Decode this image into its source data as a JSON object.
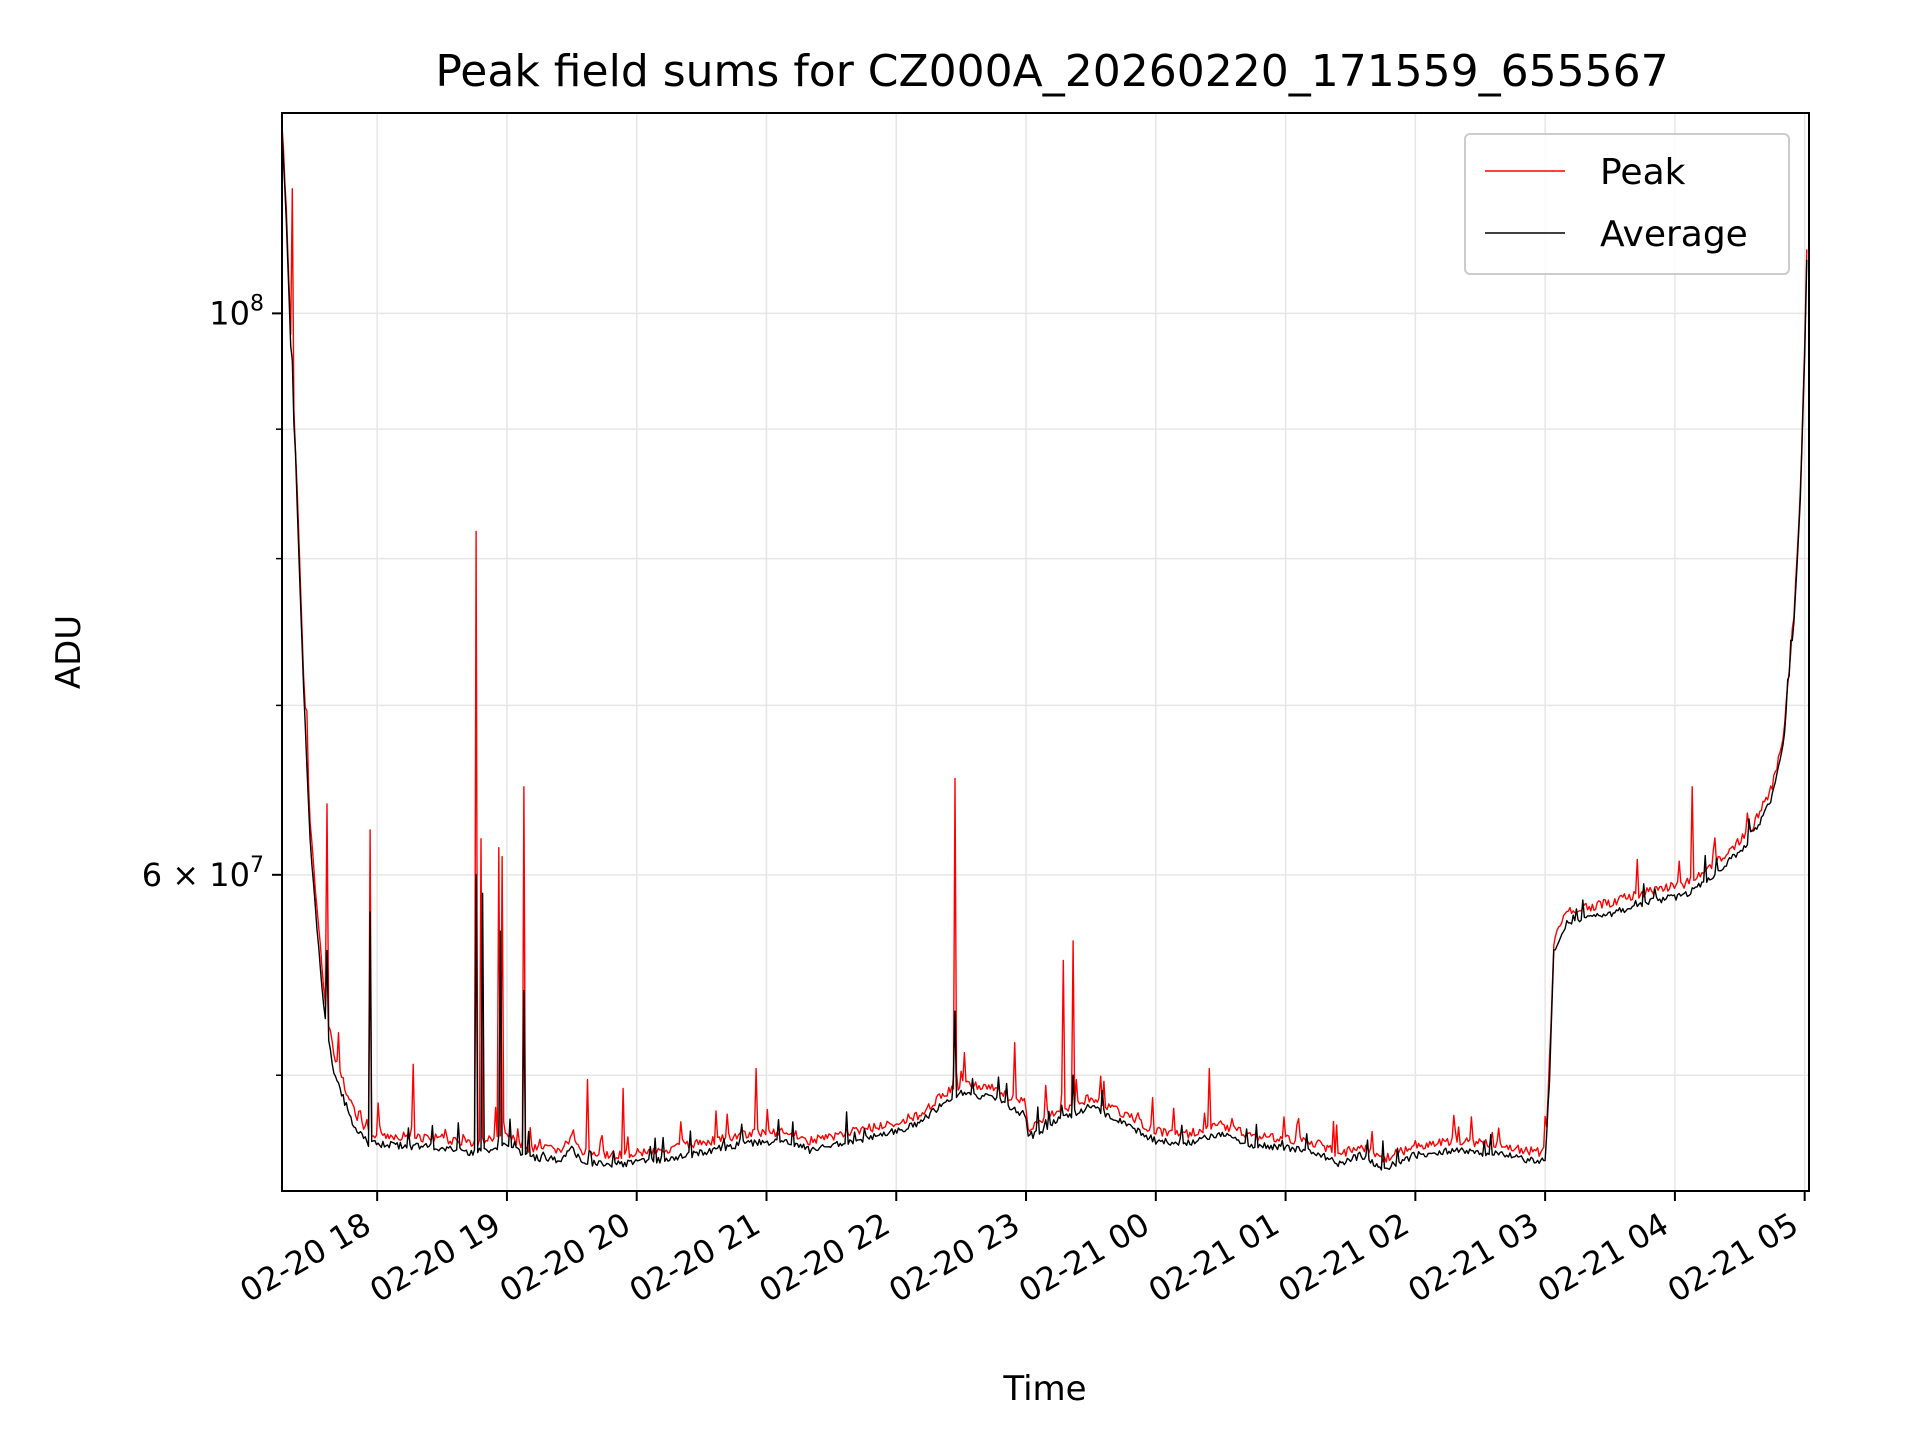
{
  "chart_data": {
    "type": "line",
    "title": "Peak field sums for CZ000A_20260220_171559_655567",
    "xlabel": "Time",
    "ylabel": "ADU",
    "x_scale": "time",
    "y_scale": "log",
    "xlim": [
      "2026-02-20 17:16",
      "2026-02-21 05:02"
    ],
    "ylim": [
      45000000,
      120000000
    ],
    "x_ticks": [
      "02-20 18",
      "02-20 19",
      "02-20 20",
      "02-20 21",
      "02-20 22",
      "02-20 23",
      "02-21 00",
      "02-21 01",
      "02-21 02",
      "02-21 03",
      "02-21 04",
      "02-21 05"
    ],
    "y_ticks": [
      {
        "value": 100000000,
        "label_base": "10",
        "label_exp": "8"
      },
      {
        "value": 60000000,
        "label_base": "6 × 10",
        "label_exp": "7"
      }
    ],
    "y_minor_ticks": [
      50000000,
      70000000,
      80000000,
      90000000
    ],
    "grid": true,
    "legend_position": "top-right",
    "series": [
      {
        "name": "Peak",
        "color": "#ff0000",
        "baseline": [
          [
            "2026-02-20 17:16",
            119000000
          ],
          [
            "2026-02-20 17:18",
            110000000
          ],
          [
            "2026-02-20 17:20",
            98000000
          ],
          [
            "2026-02-20 17:23",
            85000000
          ],
          [
            "2026-02-20 17:26",
            72000000
          ],
          [
            "2026-02-20 17:29",
            63000000
          ],
          [
            "2026-02-20 17:33",
            57000000
          ],
          [
            "2026-02-20 17:36",
            53500000
          ],
          [
            "2026-02-20 17:40",
            51000000
          ],
          [
            "2026-02-20 17:45",
            49500000
          ],
          [
            "2026-02-20 17:50",
            48200000
          ],
          [
            "2026-02-20 17:56",
            47400000
          ],
          [
            "2026-02-20 18:10",
            47300000
          ],
          [
            "2026-02-20 18:30",
            47200000
          ],
          [
            "2026-02-20 18:45",
            47000000
          ],
          [
            "2026-02-20 19:00",
            47300000
          ],
          [
            "2026-02-20 19:10",
            46800000
          ],
          [
            "2026-02-20 19:25",
            46700000
          ],
          [
            "2026-02-20 19:30",
            47200000
          ],
          [
            "2026-02-20 19:35",
            46600000
          ],
          [
            "2026-02-20 19:50",
            46500000
          ],
          [
            "2026-02-20 20:10",
            46700000
          ],
          [
            "2026-02-20 20:30",
            47000000
          ],
          [
            "2026-02-20 20:50",
            47400000
          ],
          [
            "2026-02-20 21:10",
            47500000
          ],
          [
            "2026-02-20 21:20",
            47100000
          ],
          [
            "2026-02-20 21:40",
            47500000
          ],
          [
            "2026-02-20 21:55",
            47800000
          ],
          [
            "2026-02-20 22:10",
            48200000
          ],
          [
            "2026-02-20 22:20",
            49000000
          ],
          [
            "2026-02-20 22:30",
            49600000
          ],
          [
            "2026-02-20 22:45",
            49400000
          ],
          [
            "2026-02-20 23:00",
            48600000
          ],
          [
            "2026-02-20 23:01",
            47600000
          ],
          [
            "2026-02-20 23:15",
            48400000
          ],
          [
            "2026-02-20 23:30",
            49000000
          ],
          [
            "2026-02-20 23:45",
            48300000
          ],
          [
            "2026-02-21 00:00",
            47500000
          ],
          [
            "2026-02-21 00:15",
            47400000
          ],
          [
            "2026-02-21 00:30",
            47800000
          ],
          [
            "2026-02-21 00:45",
            47300000
          ],
          [
            "2026-02-21 01:00",
            47200000
          ],
          [
            "2026-02-21 01:15",
            47000000
          ],
          [
            "2026-02-21 01:25",
            46500000
          ],
          [
            "2026-02-21 01:35",
            46900000
          ],
          [
            "2026-02-21 01:45",
            46300000
          ],
          [
            "2026-02-21 02:00",
            46900000
          ],
          [
            "2026-02-21 02:20",
            47100000
          ],
          [
            "2026-02-21 02:40",
            46900000
          ],
          [
            "2026-02-21 02:58",
            46600000
          ],
          [
            "2026-02-21 03:00",
            46800000
          ],
          [
            "2026-02-21 03:02",
            50000000
          ],
          [
            "2026-02-21 03:04",
            56500000
          ],
          [
            "2026-02-21 03:10",
            58000000
          ],
          [
            "2026-02-21 03:30",
            58500000
          ],
          [
            "2026-02-21 03:50",
            59200000
          ],
          [
            "2026-02-21 04:05",
            59500000
          ],
          [
            "2026-02-21 04:20",
            60800000
          ],
          [
            "2026-02-21 04:35",
            62500000
          ],
          [
            "2026-02-21 04:45",
            65000000
          ],
          [
            "2026-02-21 04:50",
            68000000
          ],
          [
            "2026-02-21 04:55",
            76000000
          ],
          [
            "2026-02-21 04:58",
            85000000
          ],
          [
            "2026-02-21 05:00",
            97000000
          ],
          [
            "2026-02-21 05:01",
            106000000
          ]
        ],
        "spikes": [
          [
            "2026-02-20 17:21",
            112000000
          ],
          [
            "2026-02-20 17:37",
            64000000
          ],
          [
            "2026-02-20 17:57",
            62500000
          ],
          [
            "2026-02-20 18:17",
            50500000
          ],
          [
            "2026-02-20 18:46",
            82000000
          ],
          [
            "2026-02-20 18:48",
            62000000
          ],
          [
            "2026-02-20 18:56",
            61500000
          ],
          [
            "2026-02-20 18:58",
            61000000
          ],
          [
            "2026-02-20 19:08",
            65000000
          ],
          [
            "2026-02-20 19:37",
            49800000
          ],
          [
            "2026-02-20 19:54",
            49400000
          ],
          [
            "2026-02-20 20:55",
            50300000
          ],
          [
            "2026-02-20 22:27",
            65500000
          ],
          [
            "2026-02-20 22:55",
            51500000
          ],
          [
            "2026-02-20 23:17",
            55500000
          ],
          [
            "2026-02-20 23:22",
            56500000
          ],
          [
            "2026-02-21 00:25",
            50300000
          ],
          [
            "2026-02-21 01:05",
            47800000
          ],
          [
            "2026-02-21 01:40",
            47500000
          ],
          [
            "2026-02-21 02:18",
            48200000
          ],
          [
            "2026-02-21 04:08",
            65000000
          ]
        ]
      },
      {
        "name": "Average",
        "color": "#000000",
        "baseline": [
          [
            "2026-02-20 17:16",
            118000000
          ],
          [
            "2026-02-20 17:18",
            109000000
          ],
          [
            "2026-02-20 17:20",
            97000000
          ],
          [
            "2026-02-20 17:23",
            84000000
          ],
          [
            "2026-02-20 17:26",
            71000000
          ],
          [
            "2026-02-20 17:29",
            62000000
          ],
          [
            "2026-02-20 17:33",
            56000000
          ],
          [
            "2026-02-20 17:36",
            52500000
          ],
          [
            "2026-02-20 17:40",
            50200000
          ],
          [
            "2026-02-20 17:45",
            48800000
          ],
          [
            "2026-02-20 17:50",
            47600000
          ],
          [
            "2026-02-20 17:56",
            47000000
          ],
          [
            "2026-02-20 18:10",
            46900000
          ],
          [
            "2026-02-20 18:30",
            46800000
          ],
          [
            "2026-02-20 18:45",
            46600000
          ],
          [
            "2026-02-20 19:00",
            46900000
          ],
          [
            "2026-02-20 19:10",
            46400000
          ],
          [
            "2026-02-20 19:25",
            46300000
          ],
          [
            "2026-02-20 19:30",
            46800000
          ],
          [
            "2026-02-20 19:35",
            46200000
          ],
          [
            "2026-02-20 19:50",
            46100000
          ],
          [
            "2026-02-20 20:10",
            46300000
          ],
          [
            "2026-02-20 20:30",
            46600000
          ],
          [
            "2026-02-20 20:50",
            47000000
          ],
          [
            "2026-02-20 21:10",
            47100000
          ],
          [
            "2026-02-20 21:20",
            46700000
          ],
          [
            "2026-02-20 21:40",
            47100000
          ],
          [
            "2026-02-20 21:55",
            47400000
          ],
          [
            "2026-02-20 22:10",
            47800000
          ],
          [
            "2026-02-20 22:20",
            48600000
          ],
          [
            "2026-02-20 22:30",
            49200000
          ],
          [
            "2026-02-20 22:45",
            49000000
          ],
          [
            "2026-02-20 23:00",
            48200000
          ],
          [
            "2026-02-20 23:01",
            47200000
          ],
          [
            "2026-02-20 23:15",
            48000000
          ],
          [
            "2026-02-20 23:30",
            48600000
          ],
          [
            "2026-02-20 23:45",
            47900000
          ],
          [
            "2026-02-21 00:00",
            47100000
          ],
          [
            "2026-02-21 00:15",
            47000000
          ],
          [
            "2026-02-21 00:30",
            47400000
          ],
          [
            "2026-02-21 00:45",
            46900000
          ],
          [
            "2026-02-21 01:00",
            46800000
          ],
          [
            "2026-02-21 01:15",
            46600000
          ],
          [
            "2026-02-21 01:25",
            46100000
          ],
          [
            "2026-02-21 01:35",
            46500000
          ],
          [
            "2026-02-21 01:45",
            45900000
          ],
          [
            "2026-02-21 02:00",
            46500000
          ],
          [
            "2026-02-21 02:20",
            46700000
          ],
          [
            "2026-02-21 02:40",
            46500000
          ],
          [
            "2026-02-21 02:58",
            46200000
          ],
          [
            "2026-02-21 03:00",
            46400000
          ],
          [
            "2026-02-21 03:02",
            49600000
          ],
          [
            "2026-02-21 03:04",
            56000000
          ],
          [
            "2026-02-21 03:10",
            57400000
          ],
          [
            "2026-02-21 03:30",
            57900000
          ],
          [
            "2026-02-21 03:50",
            58600000
          ],
          [
            "2026-02-21 04:05",
            58900000
          ],
          [
            "2026-02-21 04:20",
            60200000
          ],
          [
            "2026-02-21 04:35",
            61900000
          ],
          [
            "2026-02-21 04:45",
            64400000
          ],
          [
            "2026-02-21 04:50",
            67400000
          ],
          [
            "2026-02-21 04:55",
            75400000
          ],
          [
            "2026-02-21 04:58",
            84400000
          ],
          [
            "2026-02-21 05:00",
            96400000
          ],
          [
            "2026-02-21 05:01",
            105000000
          ]
        ],
        "spikes": [
          [
            "2026-02-20 17:37",
            56000000
          ],
          [
            "2026-02-20 17:57",
            58000000
          ],
          [
            "2026-02-20 18:46",
            60000000
          ],
          [
            "2026-02-20 18:49",
            59000000
          ],
          [
            "2026-02-20 18:57",
            57000000
          ],
          [
            "2026-02-20 19:08",
            54000000
          ],
          [
            "2026-02-20 22:27",
            53000000
          ],
          [
            "2026-02-20 23:22",
            50000000
          ]
        ]
      }
    ]
  }
}
